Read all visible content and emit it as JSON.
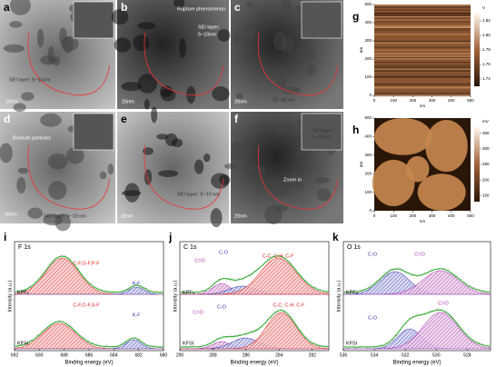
{
  "tem": [
    {
      "letter": "a",
      "texts": [
        "SEI layer: 5~10nm",
        "20nm"
      ]
    },
    {
      "letter": "b",
      "texts": [
        "Rupture phenomenon",
        "SEI layer:",
        "5~10nm",
        "20nm"
      ]
    },
    {
      "letter": "c",
      "texts": [
        "10~40 nm",
        "20nm"
      ]
    },
    {
      "letter": "d",
      "texts": [
        "Bismuth particles",
        "SEI layer: 5~10 nm",
        "20nm"
      ]
    },
    {
      "letter": "e",
      "texts": [
        "SEI layer: 5~10 nm",
        "20nm"
      ]
    },
    {
      "letter": "f",
      "texts": [
        "SEI layer:",
        "5~10nm",
        "Zoom in",
        "20nm"
      ]
    }
  ],
  "afm": [
    {
      "letter": "g",
      "xlabel": "nm",
      "ylabel": "nm",
      "xlim": [
        0,
        500
      ],
      "ylim": [
        0,
        500
      ],
      "xticks": [
        0,
        100,
        200,
        300,
        400,
        500
      ],
      "yticks": [
        0,
        100,
        200,
        300,
        400,
        500
      ],
      "unit": "V",
      "cbar_lim": [
        1.73,
        1.83
      ],
      "cbar_ticks": [
        1.74,
        1.76,
        1.78,
        {
          "value": 1.8,
          "label": "1.80"
        },
        1.82
      ]
    },
    {
      "letter": "h",
      "xlabel": "nm",
      "ylabel": "nm",
      "xlim": [
        0,
        500
      ],
      "ylim": [
        0,
        500
      ],
      "xticks": [
        0,
        100,
        200,
        300,
        400,
        500
      ],
      "yticks": [
        0,
        100,
        200,
        300,
        400,
        500
      ],
      "unit": "mV",
      "cbar_lim": [
        130,
        370
      ],
      "cbar_ticks": [
        150,
        200,
        250,
        300,
        350
      ]
    }
  ],
  "xps": [
    {
      "letter": "i",
      "title": "F 1s",
      "xlabel": "Binding energy (eV)",
      "ylabel": "Intensity (a.u.)",
      "xlim": [
        692,
        680
      ],
      "xticks": [
        692,
        690,
        688,
        686,
        684,
        682,
        680
      ],
      "top": {
        "sample": "KPF₆",
        "peaks": [
          "C-F,O-F,P-F",
          "K-F"
        ]
      },
      "bottom": {
        "sample": "KFSI",
        "peaks": [
          "C-F,O-F,S-F",
          "K-F"
        ]
      }
    },
    {
      "letter": "j",
      "title": "C 1s",
      "xlabel": "Binding energy (eV)",
      "ylabel": "Intensity (a.u.)",
      "xlim": [
        290,
        281
      ],
      "xticks": [
        290,
        288,
        286,
        284,
        282
      ],
      "top": {
        "sample": "KPF₆",
        "peaks": [
          "C=O",
          "C-O",
          "C-C, C-H, C-F"
        ]
      },
      "bottom": {
        "sample": "KFSI",
        "peaks": [
          "C=O",
          "C-O",
          "C-C, C-H, C-F"
        ]
      }
    },
    {
      "letter": "k",
      "title": "O 1s",
      "xlabel": "Binding energy (eV)",
      "ylabel": "Intensity (a.u.)",
      "xlim": [
        536,
        526.5
      ],
      "xticks": [
        536,
        534,
        532,
        530,
        528
      ],
      "top": {
        "sample": "KPF₆",
        "peaks": [
          "C-O",
          "C=O"
        ]
      },
      "bottom": {
        "sample": "KFSI",
        "peaks": [
          "C-O",
          "C=O"
        ]
      }
    }
  ]
}
